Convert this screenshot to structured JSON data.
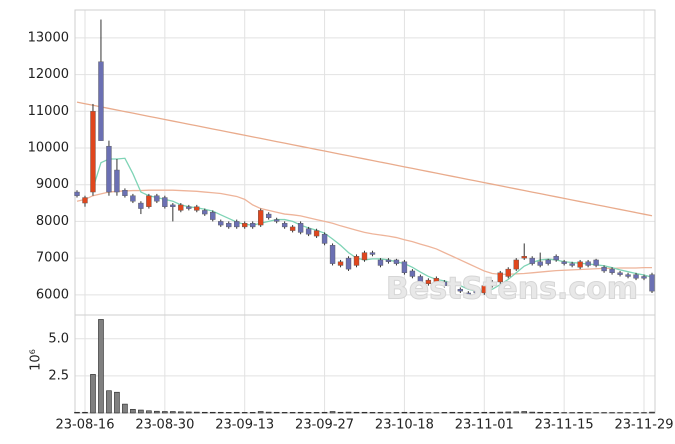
{
  "chart_data": {
    "type": "candlestick",
    "categories": [
      null,
      "23-08-16",
      null,
      null,
      null,
      null,
      null,
      null,
      null,
      null,
      null,
      "23-08-30",
      null,
      null,
      null,
      null,
      null,
      null,
      null,
      null,
      null,
      "23-09-13",
      null,
      null,
      null,
      null,
      null,
      null,
      null,
      null,
      null,
      "23-09-27",
      null,
      null,
      null,
      null,
      null,
      null,
      null,
      null,
      null,
      "23-10-18",
      null,
      null,
      null,
      null,
      null,
      null,
      null,
      null,
      null,
      "23-11-01",
      null,
      null,
      null,
      null,
      null,
      null,
      null,
      null,
      null,
      "23-11-15",
      null,
      null,
      null,
      null,
      null,
      null,
      null,
      null,
      null,
      "23-11-29",
      null
    ],
    "ohlc": {
      "open": [
        8800,
        8500,
        8800,
        12350,
        10050,
        9400,
        8850,
        8700,
        8500,
        8400,
        8700,
        8650,
        8450,
        8300,
        8400,
        8300,
        8300,
        8250,
        8000,
        7950,
        8000,
        7850,
        7950,
        7900,
        8200,
        8050,
        7950,
        7750,
        7950,
        7800,
        7600,
        7650,
        7350,
        6800,
        7000,
        6800,
        6950,
        7150,
        6950,
        6950,
        6950,
        6900,
        6650,
        6500,
        6300,
        6350,
        6350,
        6200,
        6150,
        6050,
        6100,
        6050,
        6250,
        6350,
        6500,
        6700,
        7000,
        7000,
        6900,
        6950,
        7050,
        6900,
        6850,
        6750,
        6900,
        6950,
        6750,
        6700,
        6600,
        6550,
        6550,
        6500,
        6550
      ],
      "high": [
        8850,
        8700,
        11200,
        13500,
        10200,
        9700,
        8900,
        8750,
        8550,
        8750,
        8750,
        8700,
        8500,
        8500,
        8450,
        8450,
        8350,
        8300,
        8050,
        8000,
        8050,
        8000,
        8000,
        8350,
        8250,
        8100,
        8000,
        7900,
        8000,
        7850,
        7800,
        7700,
        7400,
        6950,
        7050,
        7100,
        7200,
        7200,
        7000,
        7000,
        6980,
        6950,
        6700,
        6550,
        6450,
        6500,
        6400,
        6250,
        6200,
        6100,
        6150,
        6300,
        6400,
        6650,
        6750,
        7000,
        7400,
        7050,
        7150,
        6980,
        7100,
        6950,
        6900,
        6950,
        6950,
        6980,
        6800,
        6750,
        6650,
        6600,
        6600,
        6550,
        6600
      ],
      "low": [
        8650,
        8400,
        8700,
        10200,
        8700,
        8700,
        8650,
        8500,
        8200,
        8350,
        8500,
        8350,
        8000,
        8250,
        8300,
        8250,
        8150,
        8000,
        7850,
        7800,
        7800,
        7800,
        7800,
        7850,
        8050,
        7950,
        7800,
        7700,
        7650,
        7600,
        7550,
        7350,
        6800,
        6750,
        6650,
        6750,
        6900,
        7050,
        6750,
        6850,
        6800,
        6550,
        6450,
        6250,
        6250,
        6300,
        6200,
        6000,
        6050,
        5900,
        6000,
        6000,
        6200,
        6300,
        6450,
        6650,
        6950,
        6800,
        6750,
        6800,
        6900,
        6800,
        6750,
        6700,
        6750,
        6750,
        6600,
        6550,
        6500,
        6450,
        6400,
        6400,
        6050
      ],
      "close": [
        8700,
        8650,
        11000,
        10200,
        8800,
        8800,
        8700,
        8550,
        8350,
        8700,
        8550,
        8400,
        8400,
        8450,
        8350,
        8400,
        8200,
        8050,
        7900,
        7850,
        7850,
        7950,
        7850,
        8300,
        8100,
        8000,
        7850,
        7850,
        7700,
        7650,
        7750,
        7400,
        6850,
        6900,
        6700,
        7050,
        7150,
        7100,
        6800,
        6900,
        6850,
        6600,
        6500,
        6300,
        6400,
        6450,
        6250,
        6050,
        6100,
        5950,
        6050,
        6250,
        6350,
        6600,
        6700,
        6950,
        7050,
        6850,
        6800,
        6850,
        6950,
        6850,
        6800,
        6900,
        6800,
        6800,
        6650,
        6600,
        6550,
        6500,
        6450,
        6450,
        6100
      ]
    },
    "up_color": "#e0461d",
    "down_color": "#6b70b3",
    "lines": [
      {
        "color": "#e9ab8c",
        "values": [
          11250,
          11207,
          11164,
          11121,
          11078,
          11035,
          10992,
          10949,
          10906,
          10863,
          10820,
          10777,
          10734,
          10691,
          10648,
          10605,
          10562,
          10519,
          10476,
          10433,
          10390,
          10347,
          10304,
          10261,
          10218,
          10175,
          10132,
          10089,
          10046,
          10003,
          9960,
          9917,
          9874,
          9831,
          9788,
          9745,
          9702,
          9659,
          9616,
          9573,
          9530,
          9487,
          9444,
          9401,
          9358,
          9315,
          9272,
          9229,
          9186,
          9143,
          9100,
          9057,
          9014,
          8971,
          8928,
          8885,
          8842,
          8799,
          8756,
          8713,
          8670,
          8627,
          8584,
          8541,
          8498,
          8455,
          8412,
          8369,
          8326,
          8283,
          8240,
          8197,
          8154
        ]
      },
      {
        "color": "#eeb49a",
        "values": [
          8550,
          8600,
          8700,
          8750,
          8800,
          8820,
          8830,
          8840,
          8840,
          8850,
          8850,
          8850,
          8850,
          8840,
          8830,
          8820,
          8800,
          8780,
          8760,
          8720,
          8680,
          8600,
          8450,
          8350,
          8300,
          8250,
          8200,
          8180,
          8150,
          8100,
          8050,
          8000,
          7950,
          7880,
          7820,
          7760,
          7700,
          7660,
          7630,
          7600,
          7560,
          7500,
          7450,
          7380,
          7320,
          7250,
          7150,
          7050,
          6950,
          6850,
          6750,
          6650,
          6580,
          6560,
          6560,
          6570,
          6580,
          6600,
          6620,
          6640,
          6660,
          6670,
          6680,
          6690,
          6700,
          6710,
          6720,
          6720,
          6730,
          6730,
          6730,
          6740,
          6740
        ]
      },
      {
        "color": "#7fd4b6",
        "values": [
          null,
          null,
          8900,
          9600,
          9700,
          9700,
          9720,
          9300,
          8800,
          8700,
          8650,
          8600,
          8550,
          8450,
          8400,
          8370,
          8330,
          8280,
          8180,
          8080,
          7980,
          7920,
          7900,
          7950,
          8000,
          8050,
          8050,
          8000,
          7900,
          7820,
          7760,
          7680,
          7520,
          7350,
          7150,
          7000,
          6950,
          6980,
          6980,
          6950,
          6900,
          6850,
          6750,
          6620,
          6500,
          6420,
          6380,
          6320,
          6250,
          6150,
          6100,
          6100,
          6150,
          6280,
          6420,
          6600,
          6780,
          6880,
          6950,
          6970,
          6950,
          6900,
          6880,
          6860,
          6840,
          6820,
          6790,
          6740,
          6680,
          6630,
          6580,
          6540,
          6480
        ]
      }
    ],
    "ylim": [
      5450,
      13760
    ],
    "yticks": [
      6000,
      7000,
      8000,
      9000,
      10000,
      11000,
      12000,
      13000
    ],
    "grid": true,
    "watermark": "BestStens.com",
    "volume": {
      "label": "10⁶",
      "color": "#808080",
      "values": [
        0.05,
        0.05,
        2.6,
        6.3,
        1.5,
        1.4,
        0.6,
        0.25,
        0.2,
        0.15,
        0.12,
        0.1,
        0.1,
        0.08,
        0.07,
        0.06,
        0.05,
        0.05,
        0.05,
        0.04,
        0.05,
        0.04,
        0.04,
        0.1,
        0.06,
        0.05,
        0.04,
        0.04,
        0.05,
        0.04,
        0.04,
        0.05,
        0.1,
        0.05,
        0.06,
        0.05,
        0.05,
        0.04,
        0.04,
        0.03,
        0.04,
        0.05,
        0.04,
        0.04,
        0.03,
        0.03,
        0.04,
        0.05,
        0.04,
        0.05,
        0.04,
        0.05,
        0.05,
        0.06,
        0.07,
        0.08,
        0.1,
        0.06,
        0.05,
        0.04,
        0.04,
        0.03,
        0.03,
        0.04,
        0.03,
        0.03,
        0.03,
        0.03,
        0.03,
        0.03,
        0.03,
        0.03,
        0.06
      ],
      "ylim": [
        0,
        6.6
      ],
      "yticks": [
        2.5,
        {
          "value": 5,
          "label": "5.0"
        }
      ]
    }
  }
}
